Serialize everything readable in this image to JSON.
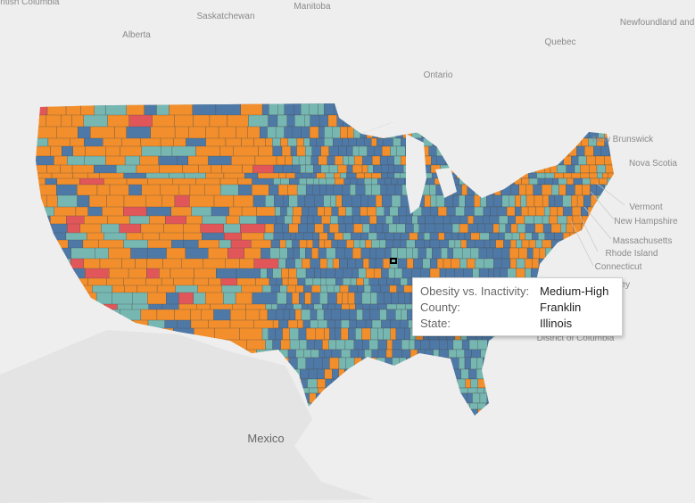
{
  "map_labels": [
    "British Columbia",
    "Saskatchewan",
    "Manitoba",
    "Alberta",
    "Quebec",
    "Newfoundland and Labrador",
    "Ontario",
    "New Brunswick",
    "Nova Scotia",
    "Vermont",
    "New Hampshire",
    "Massachusetts",
    "Rhode Island",
    "Connecticut",
    "New Jersey",
    "District of Columbia",
    "Mexico"
  ],
  "tooltip": {
    "rows": [
      {
        "label": "Obesity vs. Inactivity:",
        "value": "Medium-High"
      },
      {
        "label": "County:",
        "value": "Franklin"
      },
      {
        "label": "State:",
        "value": "Illinois"
      }
    ]
  }
}
